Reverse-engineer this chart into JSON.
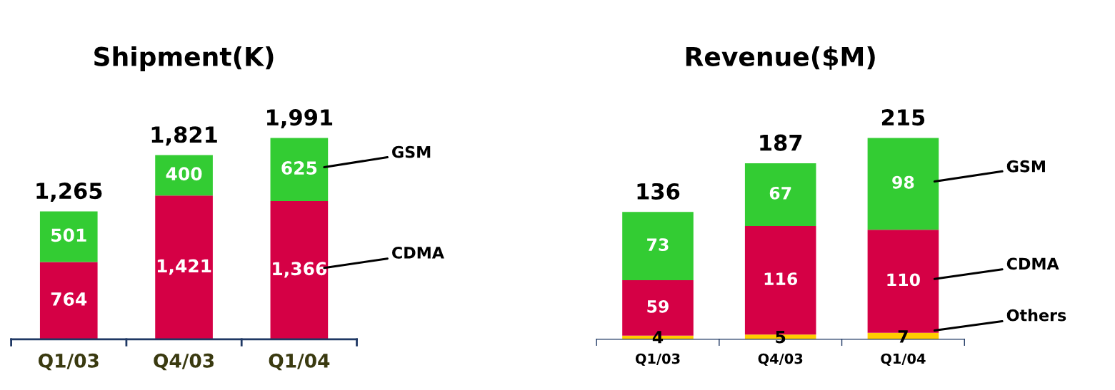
{
  "chart_data": [
    {
      "type": "bar",
      "title": "Shipment(K)",
      "stacked": true,
      "categories": [
        "Q1/03",
        "Q4/03",
        "Q1/04"
      ],
      "series": [
        {
          "name": "CDMA",
          "color": "#d50045",
          "values": [
            764,
            1421,
            1366
          ],
          "value_labels": [
            "764",
            "1,421",
            "1,366"
          ]
        },
        {
          "name": "GSM",
          "color": "#33cc33",
          "values": [
            501,
            400,
            625
          ],
          "value_labels": [
            "501",
            "400",
            "625"
          ]
        }
      ],
      "totals": [
        "1,265",
        "1,821",
        "1,991"
      ]
    },
    {
      "type": "bar",
      "title": "Revenue($M)",
      "stacked": true,
      "categories": [
        "Q1/03",
        "Q4/03",
        "Q1/04"
      ],
      "series": [
        {
          "name": "Others",
          "color": "#ffcc00",
          "values": [
            4,
            5,
            7
          ],
          "value_labels": [
            "4",
            "5",
            "7"
          ]
        },
        {
          "name": "CDMA",
          "color": "#d50045",
          "values": [
            59,
            116,
            110
          ],
          "value_labels": [
            "59",
            "116",
            "110"
          ]
        },
        {
          "name": "GSM",
          "color": "#33cc33",
          "values": [
            73,
            67,
            98
          ],
          "value_labels": [
            "73",
            "67",
            "98"
          ]
        }
      ],
      "totals": [
        "136",
        "187",
        "215"
      ]
    }
  ]
}
